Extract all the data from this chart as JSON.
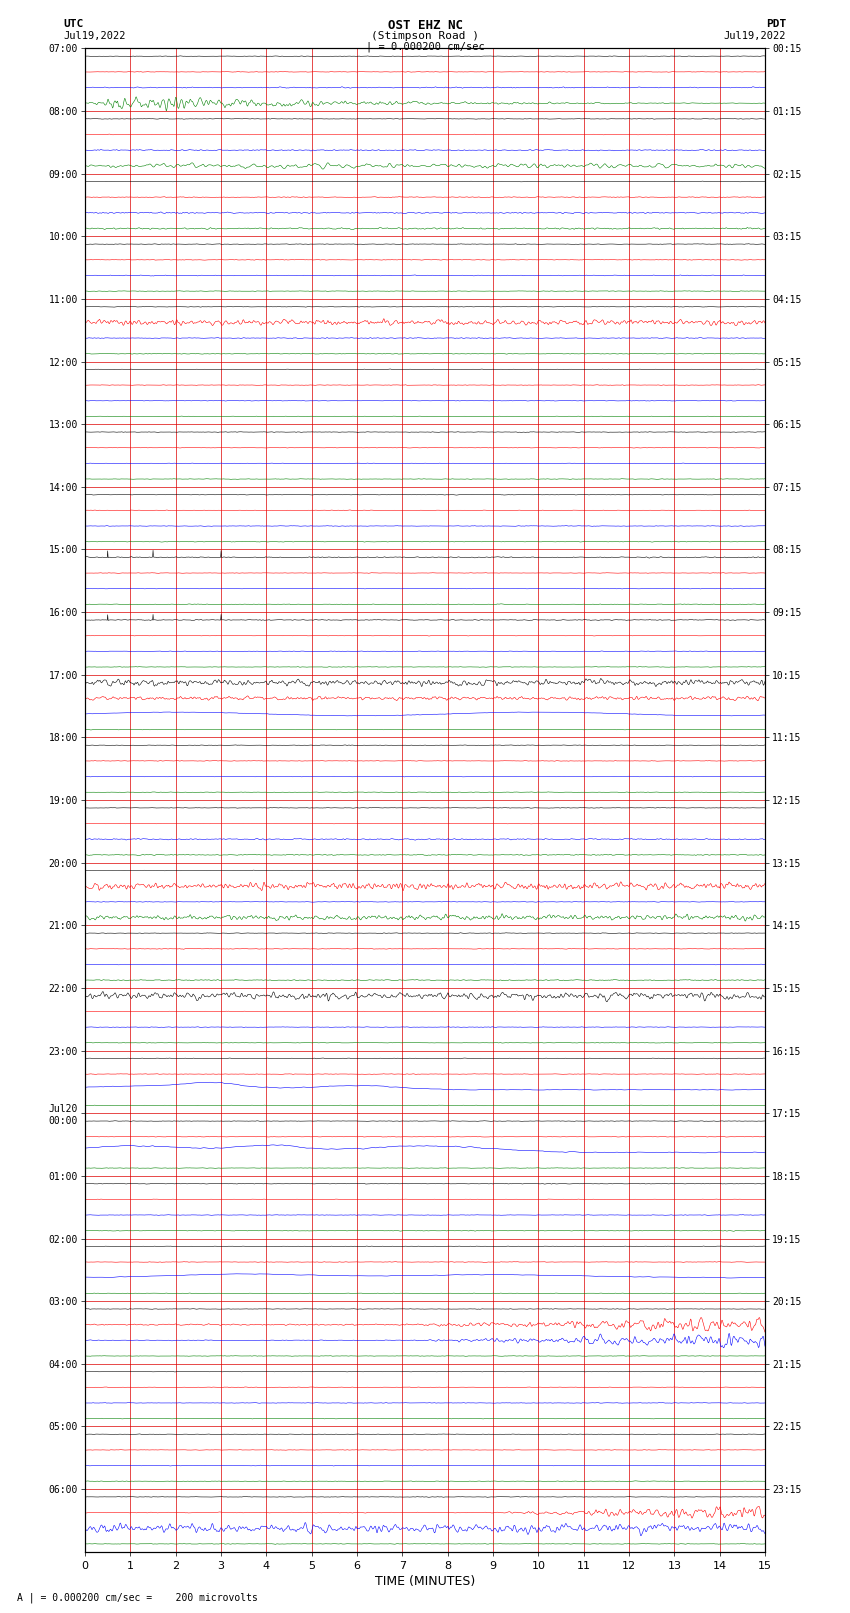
{
  "title_line1": "OST EHZ NC",
  "title_line2": "(Stimpson Road )",
  "title_line3": "| = 0.000200 cm/sec",
  "left_header1": "UTC",
  "left_header2": "Jul19,2022",
  "right_header1": "PDT",
  "right_header2": "Jul19,2022",
  "xlabel": "TIME (MINUTES)",
  "footer": "A | = 0.000200 cm/sec =    200 microvolts",
  "utc_labels": [
    "07:00",
    "08:00",
    "09:00",
    "10:00",
    "11:00",
    "12:00",
    "13:00",
    "14:00",
    "15:00",
    "16:00",
    "17:00",
    "18:00",
    "19:00",
    "20:00",
    "21:00",
    "22:00",
    "23:00",
    "Jul20\n00:00",
    "01:00",
    "02:00",
    "03:00",
    "04:00",
    "05:00",
    "06:00"
  ],
  "pdt_labels": [
    "00:15",
    "01:15",
    "02:15",
    "03:15",
    "04:15",
    "05:15",
    "06:15",
    "07:15",
    "08:15",
    "09:15",
    "10:15",
    "11:15",
    "12:15",
    "13:15",
    "14:15",
    "15:15",
    "16:15",
    "17:15",
    "18:15",
    "19:15",
    "20:15",
    "21:15",
    "22:15",
    "23:15"
  ],
  "colors": [
    "black",
    "red",
    "blue",
    "green"
  ],
  "bg_color": "#ffffff",
  "xmin": 0,
  "xmax": 15,
  "xticks": [
    0,
    1,
    2,
    3,
    4,
    5,
    6,
    7,
    8,
    9,
    10,
    11,
    12,
    13,
    14,
    15
  ]
}
